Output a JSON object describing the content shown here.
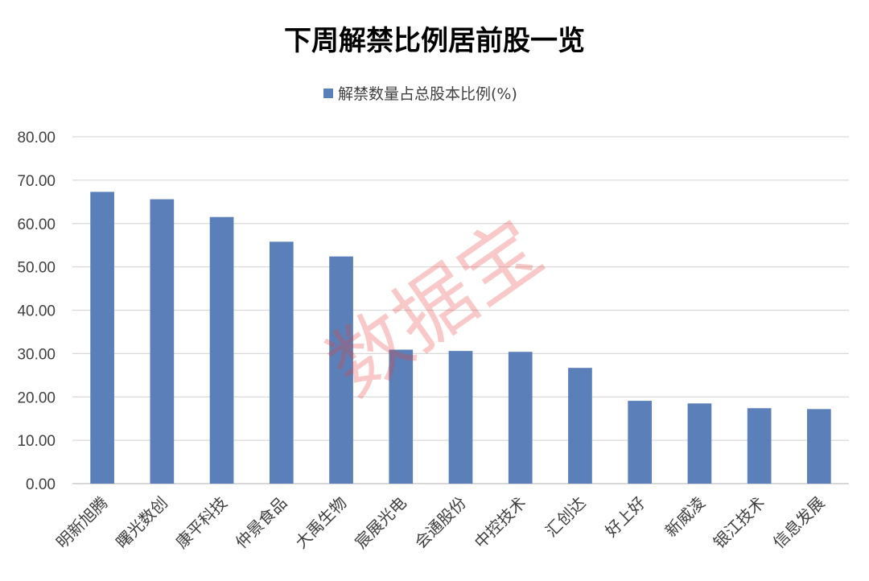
{
  "chart_data": {
    "type": "bar",
    "title": "下周解禁比例居前股一览",
    "legend": {
      "label": "解禁数量占总股本比例(%)",
      "position": "top"
    },
    "xlabel": "",
    "ylabel": "",
    "ylim": [
      0,
      80
    ],
    "yticks": [
      "0.00",
      "10.00",
      "20.00",
      "30.00",
      "40.00",
      "50.00",
      "60.00",
      "70.00",
      "80.00"
    ],
    "grid": true,
    "categories": [
      "明新旭腾",
      "曙光数创",
      "康平科技",
      "仲景食品",
      "大禹生物",
      "宸展光电",
      "会通股份",
      "中控技术",
      "汇创达",
      "好上好",
      "新威凌",
      "银江技术",
      "信息发展"
    ],
    "series": [
      {
        "name": "解禁数量占总股本比例(%)",
        "color": "#5b80b9",
        "values": [
          67.3,
          65.6,
          61.5,
          55.8,
          52.4,
          30.9,
          30.6,
          30.4,
          26.7,
          19.1,
          18.5,
          17.4,
          17.2
        ]
      }
    ]
  },
  "watermark": {
    "text": "数据宝",
    "color": "#e8413c"
  }
}
